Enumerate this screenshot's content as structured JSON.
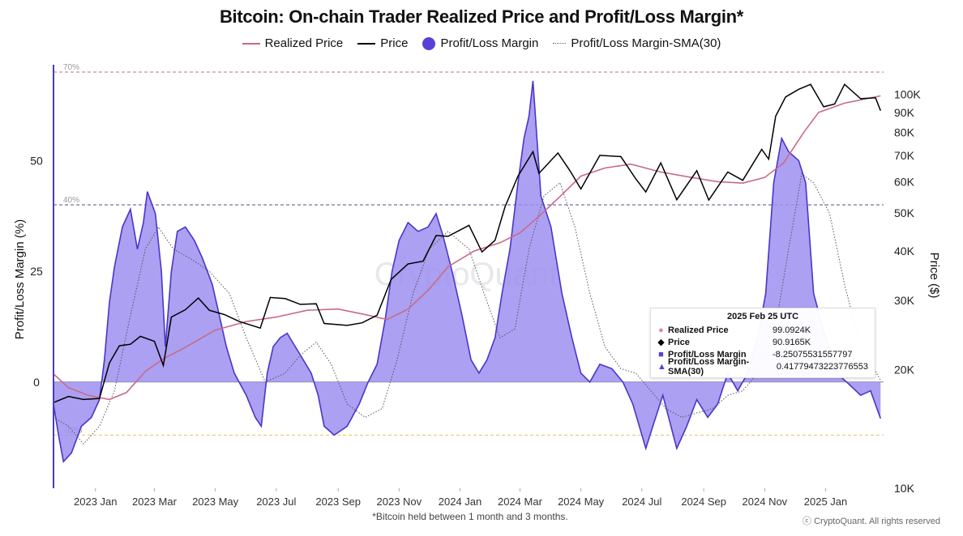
{
  "title": "Bitcoin: On-chain Trader Realized Price and Profit/Loss Margin*",
  "legend": [
    {
      "label": "Realized Price",
      "color": "#c76b87",
      "style": "line"
    },
    {
      "label": "Price",
      "color": "#000000",
      "style": "line"
    },
    {
      "label": "Profit/Loss Margin",
      "color": "#5a3fd6",
      "style": "dot"
    },
    {
      "label": "Profit/Loss Margin-SMA(30)",
      "color": "#666666",
      "style": "dotted"
    }
  ],
  "watermark": "CryptoQuant",
  "footnote": "*Bitcoin held between 1 month and 3 months.",
  "credit": "ⓒ CryptoQuant. All rights reserved",
  "tooltip": {
    "date": "2025 Feb 25 UTC",
    "rows": [
      {
        "name": "Realized Price",
        "value": "99.0924K",
        "icon": "●",
        "color": "#d88aa2"
      },
      {
        "name": "Price",
        "value": "90.9165K",
        "icon": "◆",
        "color": "#000000"
      },
      {
        "name": "Profit/Loss Margin",
        "value": "-8.25075531557797",
        "icon": "■",
        "color": "#5a3fd6"
      },
      {
        "name": "Profit/Loss Margin-SMA(30)",
        "value": "0.41779473223776553",
        "icon": "▲",
        "color": "#5a3fd6"
      }
    ]
  },
  "chart_data": {
    "type": "area+line",
    "title": "Bitcoin: On-chain Trader Realized Price and Profit/Loss Margin*",
    "xlabel": "",
    "ylabel_left": "Profit/Loss Margin (%)",
    "ylabel_right": "Price ($)",
    "y_left_ticks": [
      0,
      25,
      50
    ],
    "y_left_range": [
      -24,
      72
    ],
    "y_right_ticks": [
      "10K",
      "20K",
      "30K",
      "40K",
      "50K",
      "60K",
      "70K",
      "80K",
      "90K",
      "100K"
    ],
    "y_right_scale": "log",
    "y_right_range": [
      10000,
      120000
    ],
    "x_ticks": [
      "2023 Jan",
      "2023 Mar",
      "2023 May",
      "2023 Jul",
      "2023 Sep",
      "2023 Nov",
      "2024 Jan",
      "2024 Mar",
      "2024 May",
      "2024 Jul",
      "2024 Sep",
      "2024 Nov",
      "2025 Jan"
    ],
    "x_range": [
      "2022-11-20",
      "2025-02-28"
    ],
    "reference_lines": [
      {
        "label": "70%",
        "value": 70,
        "color": "#c76b87"
      },
      {
        "label": "40%",
        "value": 40,
        "color": "#5a4a8a"
      },
      {
        "label": "-12%",
        "value": -12,
        "color": "#e3c45a"
      }
    ],
    "series": [
      {
        "name": "Profit/Loss Margin",
        "unit": "%",
        "points": [
          [
            "2022-11-20",
            -5
          ],
          [
            "2022-11-25",
            -12
          ],
          [
            "2022-11-30",
            -18
          ],
          [
            "2022-12-08",
            -16
          ],
          [
            "2022-12-18",
            -10
          ],
          [
            "2022-12-28",
            -8
          ],
          [
            "2023-01-05",
            -4
          ],
          [
            "2023-01-10",
            5
          ],
          [
            "2023-01-15",
            18
          ],
          [
            "2023-01-20",
            26
          ],
          [
            "2023-01-28",
            35
          ],
          [
            "2023-02-05",
            39
          ],
          [
            "2023-02-12",
            30
          ],
          [
            "2023-02-18",
            36
          ],
          [
            "2023-02-22",
            43
          ],
          [
            "2023-03-02",
            38
          ],
          [
            "2023-03-08",
            25
          ],
          [
            "2023-03-12",
            8
          ],
          [
            "2023-03-18",
            25
          ],
          [
            "2023-03-24",
            34
          ],
          [
            "2023-04-01",
            35
          ],
          [
            "2023-04-10",
            32
          ],
          [
            "2023-04-18",
            28
          ],
          [
            "2023-04-28",
            22
          ],
          [
            "2023-05-05",
            15
          ],
          [
            "2023-05-12",
            8
          ],
          [
            "2023-05-20",
            2
          ],
          [
            "2023-06-01",
            -3
          ],
          [
            "2023-06-10",
            -8
          ],
          [
            "2023-06-16",
            -10
          ],
          [
            "2023-06-22",
            2
          ],
          [
            "2023-06-28",
            8
          ],
          [
            "2023-07-05",
            10
          ],
          [
            "2023-07-12",
            11
          ],
          [
            "2023-07-20",
            8
          ],
          [
            "2023-07-28",
            5
          ],
          [
            "2023-08-05",
            2
          ],
          [
            "2023-08-12",
            -3
          ],
          [
            "2023-08-18",
            -10
          ],
          [
            "2023-08-28",
            -12
          ],
          [
            "2023-09-10",
            -10
          ],
          [
            "2023-09-22",
            -5
          ],
          [
            "2023-10-01",
            0
          ],
          [
            "2023-10-10",
            4
          ],
          [
            "2023-10-18",
            14
          ],
          [
            "2023-10-25",
            25
          ],
          [
            "2023-11-01",
            32
          ],
          [
            "2023-11-10",
            36
          ],
          [
            "2023-11-20",
            34
          ],
          [
            "2023-11-30",
            35
          ],
          [
            "2023-12-08",
            38
          ],
          [
            "2023-12-15",
            33
          ],
          [
            "2023-12-24",
            25
          ],
          [
            "2024-01-03",
            15
          ],
          [
            "2024-01-12",
            5
          ],
          [
            "2024-01-20",
            2
          ],
          [
            "2024-01-28",
            5
          ],
          [
            "2024-02-05",
            10
          ],
          [
            "2024-02-12",
            20
          ],
          [
            "2024-02-20",
            30
          ],
          [
            "2024-02-28",
            45
          ],
          [
            "2024-03-05",
            55
          ],
          [
            "2024-03-10",
            60
          ],
          [
            "2024-03-14",
            68
          ],
          [
            "2024-03-22",
            42
          ],
          [
            "2024-04-01",
            35
          ],
          [
            "2024-04-12",
            20
          ],
          [
            "2024-04-22",
            10
          ],
          [
            "2024-05-01",
            2
          ],
          [
            "2024-05-10",
            0
          ],
          [
            "2024-05-20",
            4
          ],
          [
            "2024-06-01",
            3
          ],
          [
            "2024-06-12",
            0
          ],
          [
            "2024-06-22",
            -5
          ],
          [
            "2024-07-05",
            -15
          ],
          [
            "2024-07-12",
            -10
          ],
          [
            "2024-07-22",
            -3
          ],
          [
            "2024-08-05",
            -15
          ],
          [
            "2024-08-15",
            -10
          ],
          [
            "2024-08-25",
            -4
          ],
          [
            "2024-09-05",
            -8
          ],
          [
            "2024-09-15",
            -5
          ],
          [
            "2024-09-25",
            2
          ],
          [
            "2024-10-05",
            -2
          ],
          [
            "2024-10-15",
            2
          ],
          [
            "2024-10-25",
            10
          ],
          [
            "2024-11-02",
            20
          ],
          [
            "2024-11-10",
            45
          ],
          [
            "2024-11-18",
            55
          ],
          [
            "2024-11-25",
            52
          ],
          [
            "2024-12-05",
            50
          ],
          [
            "2024-12-12",
            45
          ],
          [
            "2024-12-20",
            20
          ],
          [
            "2025-01-01",
            10
          ],
          [
            "2025-01-12",
            2
          ],
          [
            "2025-01-22",
            0
          ],
          [
            "2025-02-05",
            -3
          ],
          [
            "2025-02-15",
            -2
          ],
          [
            "2025-02-25",
            -8.25
          ]
        ]
      },
      {
        "name": "Profit/Loss Margin-SMA(30)",
        "unit": "%",
        "points": [
          [
            "2022-11-20",
            -8
          ],
          [
            "2022-12-05",
            -10
          ],
          [
            "2022-12-20",
            -14
          ],
          [
            "2023-01-05",
            -10
          ],
          [
            "2023-01-20",
            -2
          ],
          [
            "2023-02-05",
            15
          ],
          [
            "2023-02-20",
            30
          ],
          [
            "2023-03-05",
            35
          ],
          [
            "2023-03-20",
            30
          ],
          [
            "2023-04-05",
            28
          ],
          [
            "2023-04-25",
            25
          ],
          [
            "2023-05-15",
            20
          ],
          [
            "2023-06-01",
            10
          ],
          [
            "2023-06-20",
            0
          ],
          [
            "2023-07-10",
            2
          ],
          [
            "2023-07-25",
            6
          ],
          [
            "2023-08-10",
            9
          ],
          [
            "2023-08-25",
            4
          ],
          [
            "2023-09-10",
            -5
          ],
          [
            "2023-09-28",
            -8
          ],
          [
            "2023-10-15",
            -6
          ],
          [
            "2023-10-30",
            5
          ],
          [
            "2023-11-15",
            20
          ],
          [
            "2023-12-01",
            30
          ],
          [
            "2023-12-20",
            34
          ],
          [
            "2024-01-10",
            30
          ],
          [
            "2024-01-25",
            20
          ],
          [
            "2024-02-10",
            10
          ],
          [
            "2024-02-25",
            12
          ],
          [
            "2024-03-10",
            30
          ],
          [
            "2024-03-25",
            42
          ],
          [
            "2024-04-10",
            45
          ],
          [
            "2024-04-25",
            35
          ],
          [
            "2024-05-10",
            20
          ],
          [
            "2024-05-25",
            8
          ],
          [
            "2024-06-10",
            3
          ],
          [
            "2024-06-25",
            2
          ],
          [
            "2024-07-10",
            -2
          ],
          [
            "2024-07-25",
            -6
          ],
          [
            "2024-08-10",
            -8
          ],
          [
            "2024-08-25",
            -7
          ],
          [
            "2024-09-10",
            -6
          ],
          [
            "2024-09-25",
            -3
          ],
          [
            "2024-10-10",
            -2
          ],
          [
            "2024-10-25",
            2
          ],
          [
            "2024-11-10",
            10
          ],
          [
            "2024-11-25",
            30
          ],
          [
            "2024-12-08",
            47
          ],
          [
            "2024-12-20",
            45
          ],
          [
            "2025-01-05",
            38
          ],
          [
            "2025-01-20",
            22
          ],
          [
            "2025-02-05",
            8
          ],
          [
            "2025-02-25",
            0.42
          ]
        ]
      },
      {
        "name": "Price",
        "unit": "USD",
        "points": [
          [
            "2022-11-20",
            16500
          ],
          [
            "2022-12-05",
            17100
          ],
          [
            "2022-12-20",
            16800
          ],
          [
            "2023-01-05",
            16900
          ],
          [
            "2023-01-15",
            20800
          ],
          [
            "2023-01-25",
            23000
          ],
          [
            "2023-02-05",
            23200
          ],
          [
            "2023-02-15",
            24300
          ],
          [
            "2023-03-01",
            23600
          ],
          [
            "2023-03-10",
            20500
          ],
          [
            "2023-03-18",
            27200
          ],
          [
            "2023-04-01",
            28400
          ],
          [
            "2023-04-14",
            30400
          ],
          [
            "2023-04-25",
            28300
          ],
          [
            "2023-05-10",
            27600
          ],
          [
            "2023-05-25",
            26500
          ],
          [
            "2023-06-15",
            25500
          ],
          [
            "2023-06-25",
            30500
          ],
          [
            "2023-07-10",
            30300
          ],
          [
            "2023-07-25",
            29300
          ],
          [
            "2023-08-10",
            29400
          ],
          [
            "2023-08-18",
            26200
          ],
          [
            "2023-09-10",
            25900
          ],
          [
            "2023-09-25",
            26300
          ],
          [
            "2023-10-10",
            27500
          ],
          [
            "2023-10-24",
            33900
          ],
          [
            "2023-11-10",
            37100
          ],
          [
            "2023-11-25",
            37700
          ],
          [
            "2023-12-08",
            43800
          ],
          [
            "2023-12-20",
            43600
          ],
          [
            "2024-01-10",
            46500
          ],
          [
            "2024-01-23",
            39800
          ],
          [
            "2024-02-05",
            42600
          ],
          [
            "2024-02-15",
            51800
          ],
          [
            "2024-02-28",
            62000
          ],
          [
            "2024-03-14",
            71500
          ],
          [
            "2024-03-20",
            63000
          ],
          [
            "2024-04-08",
            71000
          ],
          [
            "2024-04-20",
            64000
          ],
          [
            "2024-05-01",
            57500
          ],
          [
            "2024-05-20",
            70000
          ],
          [
            "2024-06-10",
            69500
          ],
          [
            "2024-06-25",
            61000
          ],
          [
            "2024-07-05",
            56500
          ],
          [
            "2024-07-20",
            67000
          ],
          [
            "2024-08-05",
            54000
          ],
          [
            "2024-08-25",
            64000
          ],
          [
            "2024-09-06",
            53900
          ],
          [
            "2024-09-25",
            63500
          ],
          [
            "2024-10-10",
            60500
          ],
          [
            "2024-10-29",
            72500
          ],
          [
            "2024-11-05",
            68500
          ],
          [
            "2024-11-12",
            88000
          ],
          [
            "2024-11-22",
            98500
          ],
          [
            "2024-12-05",
            103000
          ],
          [
            "2024-12-17",
            106000
          ],
          [
            "2024-12-30",
            93000
          ],
          [
            "2025-01-10",
            94500
          ],
          [
            "2025-01-20",
            106000
          ],
          [
            "2025-02-05",
            97500
          ],
          [
            "2025-02-20",
            98000
          ],
          [
            "2025-02-25",
            90900
          ]
        ]
      },
      {
        "name": "Realized Price",
        "unit": "USD",
        "points": [
          [
            "2022-11-20",
            19500
          ],
          [
            "2022-12-05",
            18000
          ],
          [
            "2022-12-25",
            17200
          ],
          [
            "2023-01-15",
            16800
          ],
          [
            "2023-02-01",
            17500
          ],
          [
            "2023-02-20",
            19800
          ],
          [
            "2023-03-10",
            21300
          ],
          [
            "2023-04-01",
            22800
          ],
          [
            "2023-05-01",
            25200
          ],
          [
            "2023-06-01",
            26500
          ],
          [
            "2023-07-01",
            27200
          ],
          [
            "2023-08-01",
            28300
          ],
          [
            "2023-09-01",
            28500
          ],
          [
            "2023-10-01",
            27500
          ],
          [
            "2023-10-20",
            26800
          ],
          [
            "2023-11-10",
            28500
          ],
          [
            "2023-12-01",
            32000
          ],
          [
            "2023-12-20",
            36500
          ],
          [
            "2024-01-15",
            40000
          ],
          [
            "2024-02-10",
            42000
          ],
          [
            "2024-03-01",
            44500
          ],
          [
            "2024-03-20",
            49000
          ],
          [
            "2024-04-10",
            55000
          ],
          [
            "2024-05-01",
            62000
          ],
          [
            "2024-05-25",
            65000
          ],
          [
            "2024-06-20",
            66500
          ],
          [
            "2024-07-20",
            63500
          ],
          [
            "2024-08-20",
            61500
          ],
          [
            "2024-09-15",
            60000
          ],
          [
            "2024-10-10",
            59500
          ],
          [
            "2024-11-01",
            61500
          ],
          [
            "2024-11-20",
            67000
          ],
          [
            "2024-12-10",
            80000
          ],
          [
            "2024-12-25",
            90000
          ],
          [
            "2025-01-20",
            95000
          ],
          [
            "2025-02-25",
            99092
          ]
        ]
      }
    ]
  }
}
